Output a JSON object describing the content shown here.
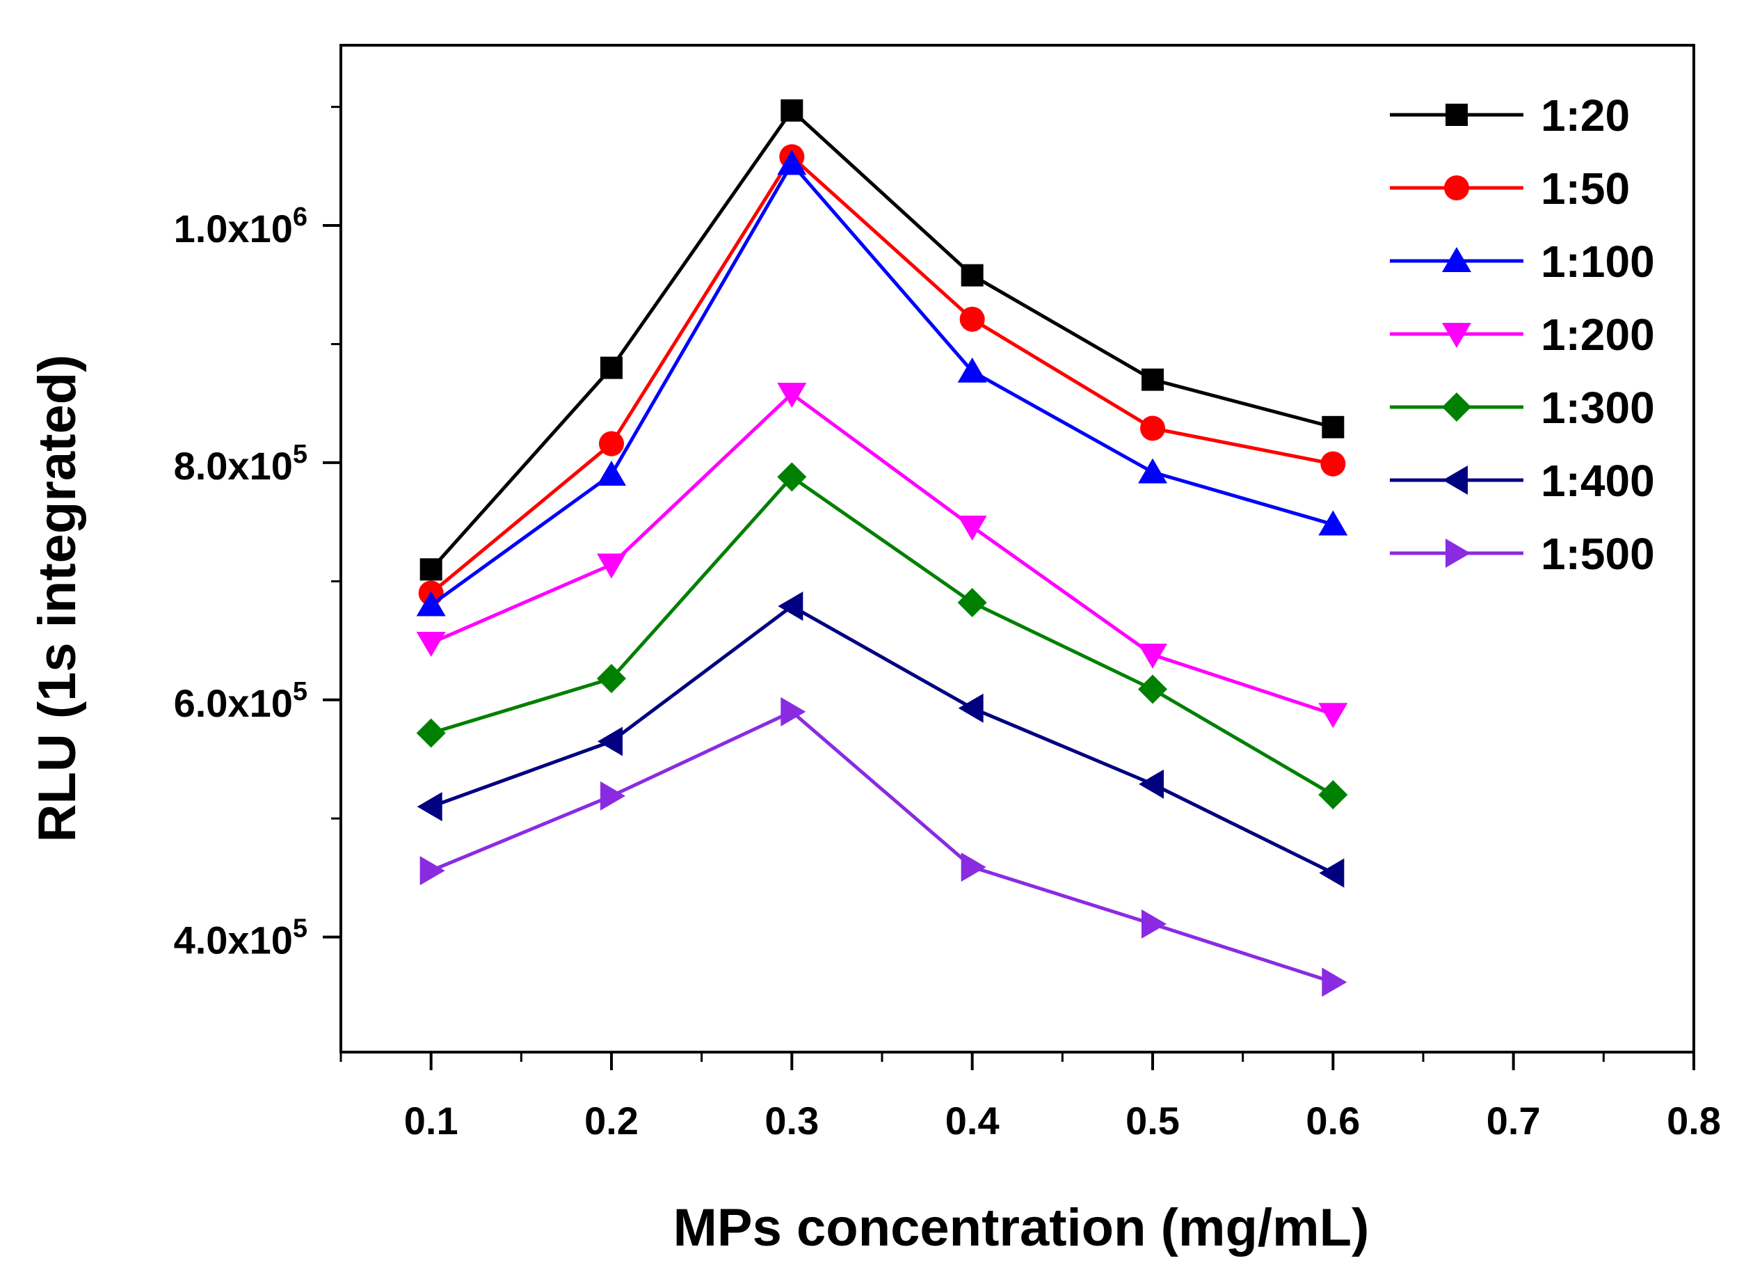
{
  "chart_data": {
    "type": "line",
    "xlabel": "MPs concentration (mg/mL)",
    "ylabel": "RLU (1s integrated)",
    "xlim": [
      0.05,
      0.8
    ],
    "ylim": [
      303000,
      1152000
    ],
    "x_ticks": [
      0.1,
      0.2,
      0.3,
      0.4,
      0.5,
      0.6,
      0.7,
      0.8
    ],
    "x_tick_labels": [
      "0.1",
      "0.2",
      "0.3",
      "0.4",
      "0.5",
      "0.6",
      "0.7",
      "0.8"
    ],
    "y_ticks": [
      400000,
      600000,
      800000,
      1000000
    ],
    "y_tick_mantissas": [
      "4.0x10",
      "6.0x10",
      "8.0x10",
      "1.0x10"
    ],
    "y_tick_exponents": [
      "5",
      "5",
      "5",
      "6"
    ],
    "x": [
      0.1,
      0.2,
      0.3,
      0.4,
      0.5,
      0.6
    ],
    "legend_position": "top-right",
    "series": [
      {
        "name": "1:20",
        "color": "#000000",
        "marker": "square",
        "values": [
          710000,
          880000,
          1097000,
          958000,
          870000,
          830000
        ]
      },
      {
        "name": "1:50",
        "color": "#ff0000",
        "marker": "circle",
        "values": [
          690000,
          816000,
          1058000,
          921000,
          829000,
          799000
        ]
      },
      {
        "name": "1:100",
        "color": "#0000ff",
        "marker": "triangle-up",
        "values": [
          680000,
          790000,
          1052000,
          877000,
          792000,
          748000
        ]
      },
      {
        "name": "1:200",
        "color": "#ff00ff",
        "marker": "triangle-down",
        "values": [
          648000,
          714000,
          858000,
          746000,
          638000,
          588000
        ]
      },
      {
        "name": "1:300",
        "color": "#008000",
        "marker": "diamond",
        "values": [
          572000,
          618000,
          788000,
          682000,
          609000,
          520000
        ]
      },
      {
        "name": "1:400",
        "color": "#000080",
        "marker": "triangle-left",
        "values": [
          510000,
          565000,
          679000,
          593000,
          529000,
          454000
        ]
      },
      {
        "name": "1:500",
        "color": "#8a2be2",
        "marker": "triangle-right",
        "values": [
          456000,
          519000,
          590000,
          459000,
          411000,
          362000
        ]
      }
    ]
  }
}
